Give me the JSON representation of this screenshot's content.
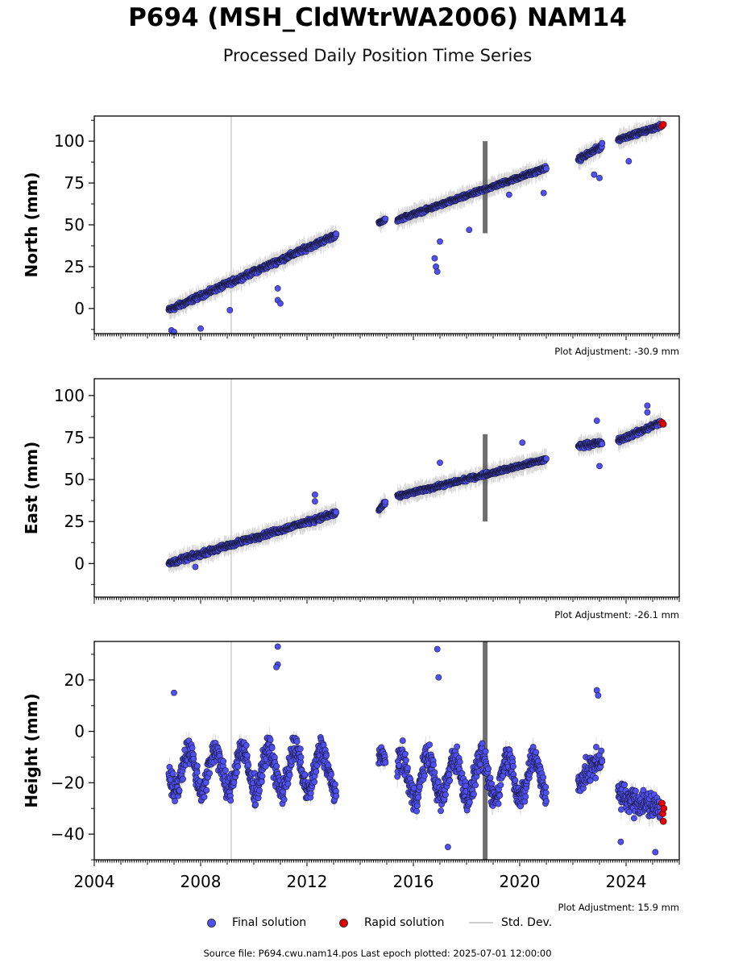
{
  "title": "P694 (MSH_CldWtrWA2006) NAM14",
  "subtitle": "Processed Daily Position Time Series",
  "legend": {
    "final": "Final solution",
    "rapid": "Rapid solution",
    "std": "Std. Dev."
  },
  "footer": "Source file: P694.cwu.nam14.pos  Last epoch plotted: 2025-07-01 12:00:00",
  "colors": {
    "final": "#5050f0",
    "rapid": "#e00000",
    "std": "#d0d0d0",
    "spike": "#555555"
  },
  "chart_data": [
    {
      "type": "scatter",
      "ylabel": "North (mm)",
      "adjustment": "Plot Adjustment: -30.9 mm",
      "xlim": [
        2004,
        2026
      ],
      "ylim": [
        -15,
        115
      ],
      "yticks": [
        0,
        25,
        50,
        75,
        100
      ],
      "segments": [
        {
          "x0": 2006.8,
          "x1": 2013.1,
          "y0": -1,
          "y1": 44,
          "noise": 4
        },
        {
          "x0": 2014.7,
          "x1": 2014.95,
          "y0": 51,
          "y1": 53,
          "noise": 2
        },
        {
          "x0": 2015.4,
          "x1": 2021.0,
          "y0": 53,
          "y1": 84,
          "noise": 3
        },
        {
          "x0": 2022.2,
          "x1": 2023.1,
          "y0": 89,
          "y1": 97,
          "noise": 4
        },
        {
          "x0": 2023.7,
          "x1": 2025.3,
          "y0": 101,
          "y1": 109,
          "noise": 3
        }
      ],
      "outliers": [
        [
          2006.9,
          -13
        ],
        [
          2007.0,
          -14
        ],
        [
          2008.0,
          -12
        ],
        [
          2009.1,
          -1
        ],
        [
          2010.9,
          5
        ],
        [
          2011.0,
          3
        ],
        [
          2010.9,
          12
        ],
        [
          2016.8,
          30
        ],
        [
          2016.85,
          25
        ],
        [
          2016.9,
          22
        ],
        [
          2017.0,
          40
        ],
        [
          2018.1,
          47
        ],
        [
          2019.6,
          68
        ],
        [
          2020.9,
          69
        ],
        [
          2022.8,
          80
        ],
        [
          2023.0,
          78
        ],
        [
          2024.1,
          88
        ]
      ],
      "rapid": [
        [
          2025.35,
          109
        ],
        [
          2025.4,
          110
        ]
      ],
      "spike": {
        "x": 2018.7,
        "ymin": 45,
        "ymax": 100
      },
      "vline": 2009.15
    },
    {
      "type": "scatter",
      "ylabel": "East (mm)",
      "adjustment": "Plot Adjustment: -26.1 mm",
      "xlim": [
        2004,
        2026
      ],
      "ylim": [
        -20,
        110
      ],
      "yticks": [
        0,
        25,
        50,
        75,
        100
      ],
      "segments": [
        {
          "x0": 2006.8,
          "x1": 2013.1,
          "y0": 0,
          "y1": 30,
          "noise": 4
        },
        {
          "x0": 2014.7,
          "x1": 2014.95,
          "y0": 32,
          "y1": 36,
          "noise": 3
        },
        {
          "x0": 2015.4,
          "x1": 2021.0,
          "y0": 40,
          "y1": 62,
          "noise": 3
        },
        {
          "x0": 2022.2,
          "x1": 2023.1,
          "y0": 70,
          "y1": 72,
          "noise": 4
        },
        {
          "x0": 2023.7,
          "x1": 2025.3,
          "y0": 73,
          "y1": 84,
          "noise": 4
        }
      ],
      "outliers": [
        [
          2007.8,
          -2
        ],
        [
          2012.3,
          41
        ],
        [
          2012.3,
          37
        ],
        [
          2017.0,
          60
        ],
        [
          2020.1,
          72
        ],
        [
          2022.9,
          85
        ],
        [
          2023.0,
          58
        ],
        [
          2024.8,
          94
        ],
        [
          2024.8,
          90
        ]
      ],
      "rapid": [
        [
          2025.35,
          84
        ],
        [
          2025.4,
          83
        ]
      ],
      "spike": {
        "x": 2018.7,
        "ymin": 25,
        "ymax": 77
      },
      "vline": 2009.15
    },
    {
      "type": "scatter",
      "ylabel": "Height (mm)",
      "adjustment": "Plot Adjustment: 15.9 mm",
      "xlim": [
        2004,
        2026
      ],
      "ylim": [
        -50,
        35
      ],
      "yticks": [
        -40,
        -20,
        0,
        20
      ],
      "xticks": [
        2004,
        2008,
        2012,
        2016,
        2020,
        2024
      ],
      "segments": [
        {
          "x0": 2006.8,
          "x1": 2013.1,
          "y0": -15,
          "y1": -15,
          "noise": 14,
          "seasonal": 8
        },
        {
          "x0": 2014.7,
          "x1": 2014.95,
          "y0": -10,
          "y1": -10,
          "noise": 8
        },
        {
          "x0": 2015.4,
          "x1": 2021.0,
          "y0": -18,
          "y1": -18,
          "noise": 14,
          "seasonal": 8
        },
        {
          "x0": 2022.2,
          "x1": 2023.1,
          "y0": -20,
          "y1": -10,
          "noise": 14
        },
        {
          "x0": 2023.7,
          "x1": 2025.3,
          "y0": -25,
          "y1": -30,
          "noise": 14
        }
      ],
      "outliers": [
        [
          2010.9,
          33
        ],
        [
          2010.9,
          26
        ],
        [
          2010.85,
          25
        ],
        [
          2016.9,
          32
        ],
        [
          2016.95,
          21
        ],
        [
          2007.0,
          15
        ],
        [
          2022.9,
          16
        ],
        [
          2022.95,
          14
        ],
        [
          2017.3,
          -45
        ],
        [
          2023.8,
          -43
        ],
        [
          2025.1,
          -47
        ]
      ],
      "rapid": [
        [
          2025.35,
          -28
        ],
        [
          2025.38,
          -32
        ],
        [
          2025.4,
          -35
        ],
        [
          2025.42,
          -30
        ]
      ],
      "spike": {
        "x": 2018.7,
        "ymin": -50,
        "ymax": 35
      },
      "vline": 2009.15
    }
  ]
}
